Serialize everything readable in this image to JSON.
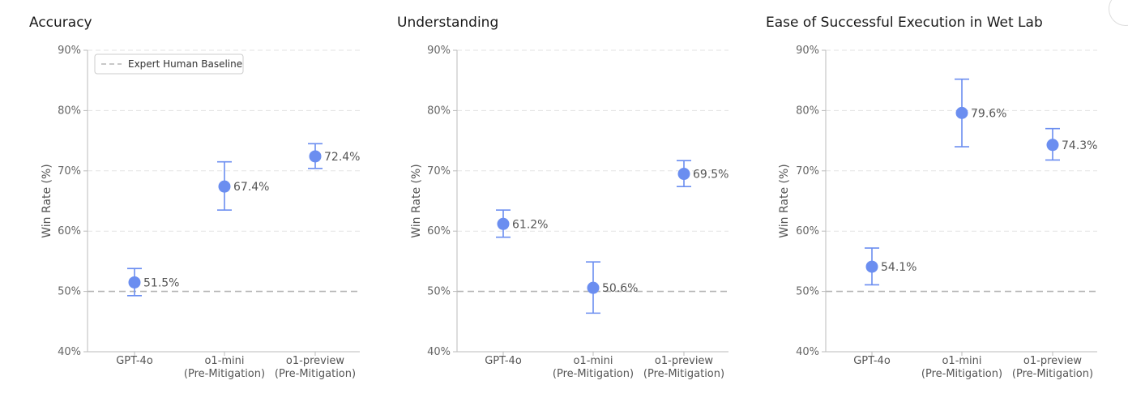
{
  "chart_data": [
    {
      "type": "scatter",
      "title": "Accuracy",
      "ylabel": "Win Rate (%)",
      "ylim": [
        40,
        90
      ],
      "yticks": [
        "40%",
        "50%",
        "60%",
        "70%",
        "80%",
        "90%"
      ],
      "categories": [
        [
          "GPT-4o"
        ],
        [
          "o1-mini",
          "(Pre-Mitigation)"
        ],
        [
          "o1-preview",
          "(Pre-Mitigation)"
        ]
      ],
      "values": [
        51.5,
        67.4,
        72.4
      ],
      "error_low": [
        49.3,
        63.5,
        70.4
      ],
      "error_high": [
        53.8,
        71.5,
        74.5
      ],
      "value_labels": [
        "51.5%",
        "67.4%",
        "72.4%"
      ],
      "baseline": 50,
      "legend": "Expert Human Baseline",
      "grid": true
    },
    {
      "type": "scatter",
      "title": "Understanding",
      "ylabel": "Win Rate (%)",
      "ylim": [
        40,
        90
      ],
      "yticks": [
        "40%",
        "50%",
        "60%",
        "70%",
        "80%",
        "90%"
      ],
      "categories": [
        [
          "GPT-4o"
        ],
        [
          "o1-mini",
          "(Pre-Mitigation)"
        ],
        [
          "o1-preview",
          "(Pre-Mitigation)"
        ]
      ],
      "values": [
        61.2,
        50.6,
        69.5
      ],
      "error_low": [
        59.0,
        46.4,
        67.4
      ],
      "error_high": [
        63.5,
        54.9,
        71.7
      ],
      "value_labels": [
        "61.2%",
        "50.6%",
        "69.5%"
      ],
      "baseline": 50,
      "grid": true
    },
    {
      "type": "scatter",
      "title": "Ease of Successful Execution in Wet Lab",
      "ylabel": "Win Rate (%)",
      "ylim": [
        40,
        90
      ],
      "yticks": [
        "40%",
        "50%",
        "60%",
        "70%",
        "80%",
        "90%"
      ],
      "categories": [
        [
          "GPT-4o"
        ],
        [
          "o1-mini",
          "(Pre-Mitigation)"
        ],
        [
          "o1-preview",
          "(Pre-Mitigation)"
        ]
      ],
      "values": [
        54.1,
        79.6,
        74.3
      ],
      "error_low": [
        51.1,
        74.0,
        71.8
      ],
      "error_high": [
        57.2,
        85.2,
        77.0
      ],
      "value_labels": [
        "54.1%",
        "79.6%",
        "74.3%"
      ],
      "baseline": 50,
      "grid": true
    }
  ],
  "colors": {
    "point": "#6b8ef0",
    "grid": "#e3e3e3",
    "baseline": "#b5b5b5",
    "axis": "#bbbbbb"
  }
}
